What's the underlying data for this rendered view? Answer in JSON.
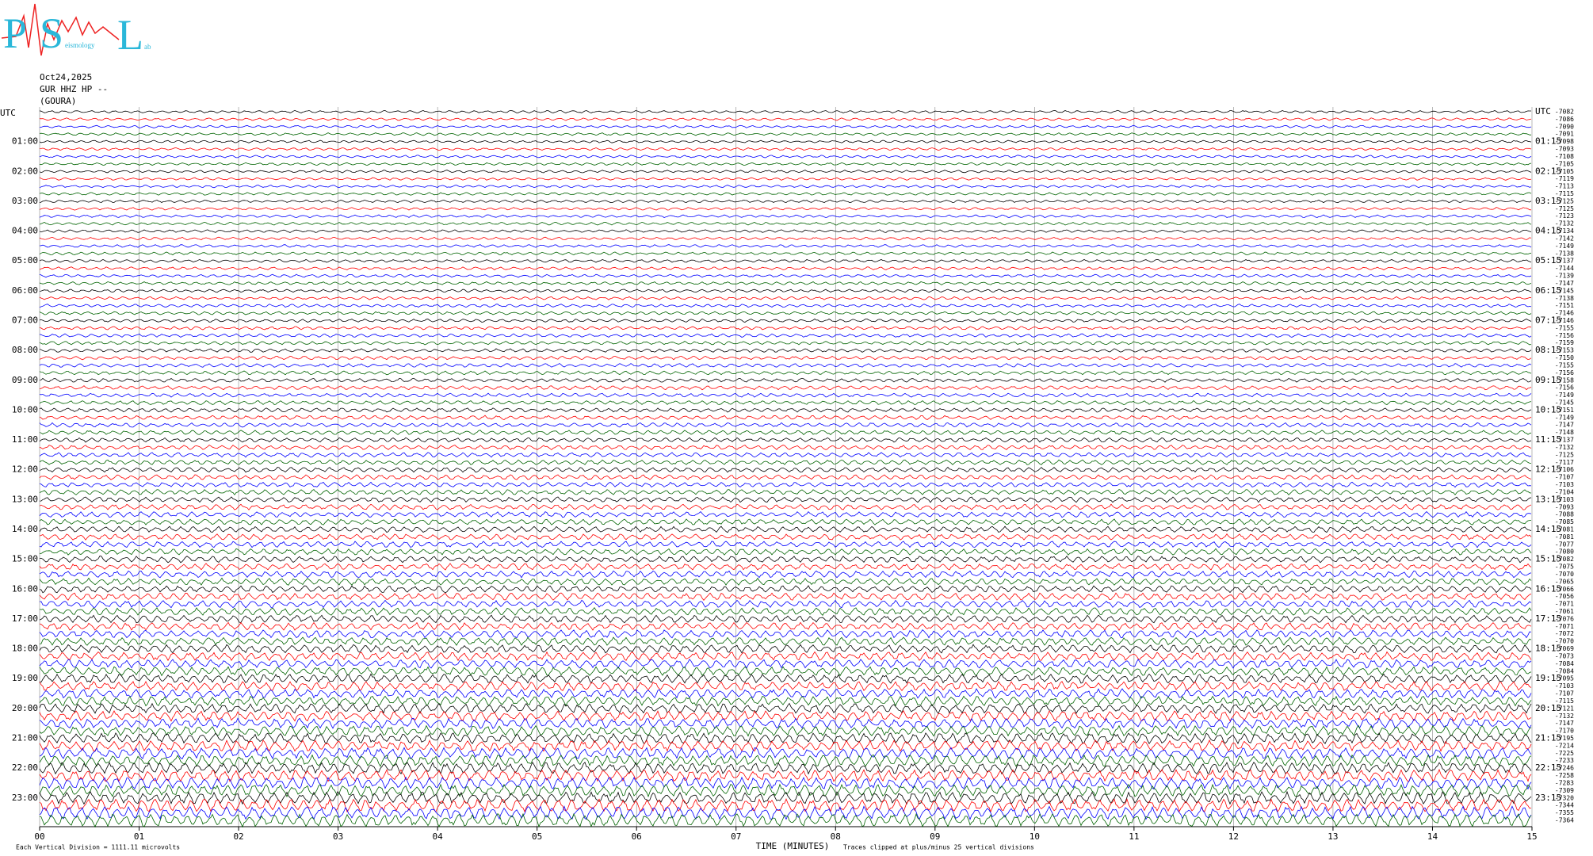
{
  "chart_data": {
    "type": "helicorder",
    "logo": {
      "letters": [
        "P",
        "S",
        "L"
      ],
      "words": [
        "eismology",
        "ab"
      ]
    },
    "date": "Oct24,2025",
    "station": "GUR HHZ HP --",
    "site": "(GOURA)",
    "xlabel": "TIME (MINUTES)",
    "scale_note": "Each Vertical Division = 1111.11 microvolts",
    "clip_note": "Traces clipped at plus/minus 25 vertical divisions",
    "xlim": [
      0,
      15
    ],
    "xticks": [
      {
        "value": 0,
        "label": "00"
      },
      {
        "value": 1,
        "label": "01"
      },
      {
        "value": 2,
        "label": "02"
      },
      {
        "value": 3,
        "label": "03"
      },
      {
        "value": 4,
        "label": "04"
      },
      {
        "value": 5,
        "label": "05"
      },
      {
        "value": 6,
        "label": "06"
      },
      {
        "value": 7,
        "label": "07"
      },
      {
        "value": 8,
        "label": "08"
      },
      {
        "value": 9,
        "label": "09"
      },
      10,
      11,
      12,
      13,
      14,
      15
    ],
    "left_labels": [
      "UTC",
      "01:00",
      "02:00",
      "03:00",
      "04:00",
      "05:00",
      "06:00",
      "07:00",
      "08:00",
      "09:00",
      "10:00",
      "11:00",
      "12:00",
      "13:00",
      "14:00",
      "15:00",
      "16:00",
      "17:00",
      "18:00",
      "19:00",
      "20:00",
      "21:00",
      "22:00",
      "23:00"
    ],
    "right_labels": [
      "UTC",
      "01:15",
      "02:15",
      "03:15",
      "04:15",
      "05:15",
      "06:15",
      "07:15",
      "08:15",
      "09:15",
      "10:15",
      "11:15",
      "12:15",
      "13:15",
      "14:15",
      "15:15",
      "16:15",
      "17:15",
      "18:15",
      "19:15",
      "20:15",
      "21:15",
      "22:15",
      "23:15"
    ],
    "trace_offsets": [
      -7082,
      -7086,
      -7090,
      -7091,
      -7098,
      -7093,
      -7108,
      -7105,
      -7105,
      -7119,
      -7113,
      -7115,
      -7125,
      -7125,
      -7123,
      -7132,
      -7134,
      -7142,
      -7149,
      -7138,
      -7137,
      -7144,
      -7139,
      -7147,
      -7145,
      -7138,
      -7151,
      -7146,
      -7146,
      -7155,
      -7156,
      -7159,
      -7153,
      -7150,
      -7155,
      -7156,
      -7158,
      -7156,
      -7149,
      -7145,
      -7151,
      -7149,
      -7147,
      -7148,
      -7137,
      -7132,
      -7125,
      -7117,
      -7106,
      -7107,
      -7103,
      -7104,
      -7103,
      -7093,
      -7088,
      -7085,
      -7081,
      -7081,
      -7077,
      -7080,
      -7082,
      -7075,
      -7070,
      -7065,
      -7066,
      -7056,
      -7071,
      -7061,
      -7076,
      -7071,
      -7072,
      -7070,
      -7069,
      -7073,
      -7084,
      -7084,
      -7095,
      -7103,
      -7107,
      -7115,
      -7121,
      -7132,
      -7147,
      -7170,
      -7195,
      -7214,
      -7225,
      -7233,
      -7246,
      -7258,
      -7283,
      -7309,
      -7320,
      -7344,
      -7355,
      -7364
    ],
    "trace_colors": [
      "#000000",
      "#ff0000",
      "#0000ff",
      "#006400"
    ],
    "grid": true
  }
}
